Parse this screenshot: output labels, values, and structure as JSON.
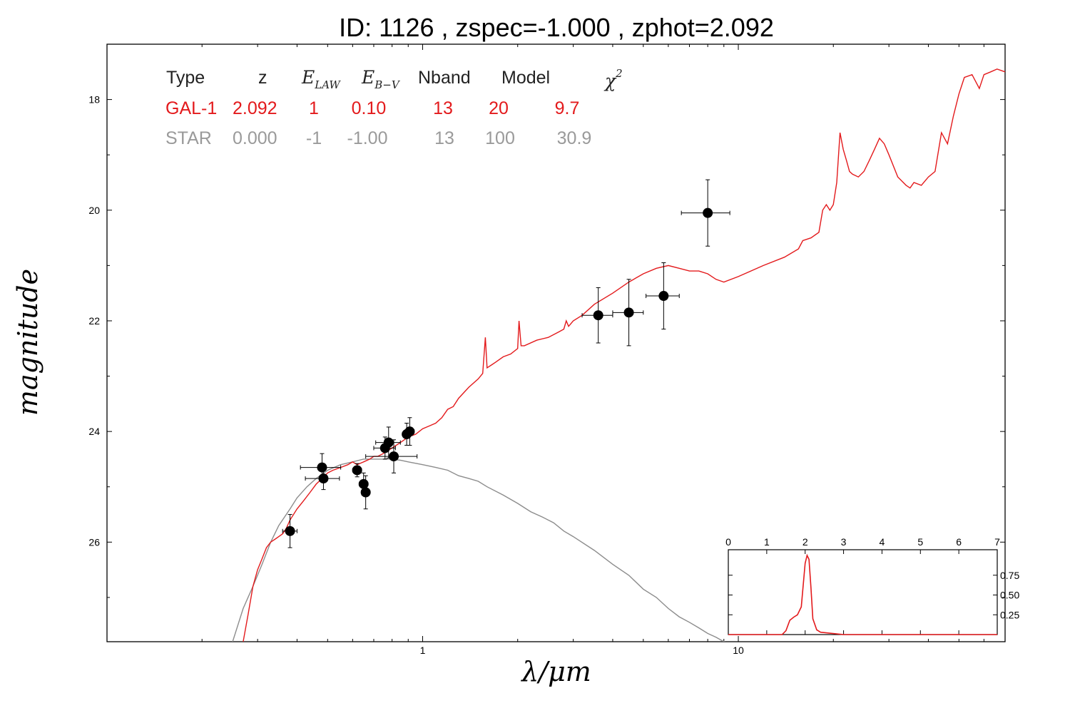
{
  "title": "ID:  1126  , zspec=-1.000 , zphot=2.092",
  "xlabel_main": "λ/",
  "xlabel_unit": "μm",
  "ylabel": "magnitude",
  "colors": {
    "galaxy": "#e31a1c",
    "star": "#8c8c8c",
    "points": "#000000",
    "axes": "#000000"
  },
  "table": {
    "headers": {
      "type": "Type",
      "z": "z",
      "elaw_main": "E",
      "elaw_sub": "LAW",
      "ebv_main": "E",
      "ebv_sub": "B−V",
      "nband": "Nband",
      "model": "Model",
      "chi2_main": "χ",
      "chi2_sup": "2"
    },
    "rows": [
      {
        "type": "GAL-1",
        "z": "2.092",
        "elaw": "1",
        "ebv": "0.10",
        "nband": "13",
        "model": "20",
        "chi2": "9.7"
      },
      {
        "type": "STAR",
        "z": "0.000",
        "elaw": "-1",
        "ebv": "-1.00",
        "nband": "13",
        "model": "100",
        "chi2": "30.9"
      }
    ]
  },
  "chart_data": [
    {
      "type": "scatter",
      "title": "ID:  1126  , zspec=-1.000 , zphot=2.092",
      "xlabel": "λ/μm",
      "ylabel": "magnitude",
      "xscale": "log",
      "xlim": [
        0.1,
        70
      ],
      "ylim": [
        27.8,
        17.0
      ],
      "yreversed": true,
      "x_ticks": [
        "1",
        "10"
      ],
      "y_ticks": [
        "18",
        "20",
        "22",
        "24",
        "26"
      ],
      "points": [
        {
          "x": 0.38,
          "y": 25.8,
          "xerr": 0.02,
          "yerr": 0.3
        },
        {
          "x": 0.48,
          "y": 24.65,
          "xerr": 0.07,
          "yerr": 0.25
        },
        {
          "x": 0.485,
          "y": 24.85,
          "xerr": 0.06,
          "yerr": 0.2
        },
        {
          "x": 0.62,
          "y": 24.7,
          "xerr": 0.02,
          "yerr": 0.12
        },
        {
          "x": 0.65,
          "y": 24.95,
          "xerr": 0.02,
          "yerr": 0.2
        },
        {
          "x": 0.66,
          "y": 25.1,
          "xerr": 0.02,
          "yerr": 0.3
        },
        {
          "x": 0.76,
          "y": 24.3,
          "xerr": 0.06,
          "yerr": 0.2
        },
        {
          "x": 0.78,
          "y": 24.2,
          "xerr": 0.07,
          "yerr": 0.28
        },
        {
          "x": 0.81,
          "y": 24.45,
          "xerr": 0.15,
          "yerr": 0.3
        },
        {
          "x": 0.89,
          "y": 24.05,
          "xerr": 0.02,
          "yerr": 0.2
        },
        {
          "x": 0.91,
          "y": 24.0,
          "xerr": 0.03,
          "yerr": 0.25
        },
        {
          "x": 3.6,
          "y": 21.9,
          "xerr": 0.4,
          "yerr": 0.5
        },
        {
          "x": 4.5,
          "y": 21.85,
          "xerr": 0.5,
          "yerr": 0.6
        },
        {
          "x": 5.8,
          "y": 21.55,
          "xerr": 0.7,
          "yerr": 0.6
        },
        {
          "x": 8.0,
          "y": 20.05,
          "xerr": 1.4,
          "yerr": 0.6
        }
      ],
      "series": [
        {
          "name": "GAL-1",
          "x": [
            0.27,
            0.28,
            0.29,
            0.3,
            0.31,
            0.32,
            0.33,
            0.34,
            0.35,
            0.36,
            0.37,
            0.38,
            0.4,
            0.42,
            0.44,
            0.46,
            0.48,
            0.5,
            0.52,
            0.55,
            0.58,
            0.6,
            0.62,
            0.65,
            0.68,
            0.7,
            0.72,
            0.75,
            0.8,
            0.85,
            0.9,
            0.95,
            1.0,
            1.05,
            1.1,
            1.15,
            1.2,
            1.25,
            1.3,
            1.4,
            1.5,
            1.55,
            1.58,
            1.6,
            1.65,
            1.7,
            1.8,
            1.9,
            2.0,
            2.02,
            2.05,
            2.1,
            2.3,
            2.5,
            2.7,
            2.8,
            2.85,
            2.9,
            3.0,
            3.2,
            3.5,
            4.0,
            4.5,
            5.0,
            5.5,
            6.0,
            6.5,
            7.0,
            7.5,
            8.0,
            8.5,
            9.0,
            10.0,
            12.0,
            14.0,
            15.5,
            16.0,
            17.0,
            18.0,
            18.5,
            19.0,
            19.5,
            20.0,
            20.5,
            21.0,
            21.5,
            22.0,
            22.5,
            23.0,
            24.0,
            25.0,
            26.0,
            27.0,
            28.0,
            29.0,
            30.0,
            32.0,
            34.0,
            35.0,
            36.0,
            38.0,
            40.0,
            42.0,
            44.0,
            46.0,
            48.0,
            50.0,
            52.0,
            55.0,
            58.0,
            60.0,
            63.0,
            66.0,
            70.0
          ],
          "y": [
            27.8,
            27.3,
            26.8,
            26.5,
            26.3,
            26.1,
            26.0,
            25.95,
            25.9,
            25.85,
            25.75,
            25.6,
            25.4,
            25.25,
            25.1,
            24.95,
            24.85,
            24.75,
            24.7,
            24.65,
            24.6,
            24.55,
            24.6,
            24.55,
            24.5,
            24.45,
            24.45,
            24.4,
            24.3,
            24.2,
            24.1,
            24.05,
            23.95,
            23.9,
            23.85,
            23.75,
            23.6,
            23.55,
            23.4,
            23.2,
            23.05,
            22.95,
            22.3,
            22.85,
            22.8,
            22.75,
            22.65,
            22.6,
            22.5,
            22.0,
            22.45,
            22.45,
            22.35,
            22.3,
            22.2,
            22.15,
            22.0,
            22.1,
            22.0,
            21.9,
            21.7,
            21.5,
            21.3,
            21.15,
            21.05,
            21.0,
            21.05,
            21.1,
            21.1,
            21.15,
            21.25,
            21.3,
            21.2,
            21.0,
            20.85,
            20.7,
            20.55,
            20.5,
            20.4,
            20.0,
            19.9,
            20.0,
            19.9,
            19.5,
            18.6,
            18.9,
            19.1,
            19.3,
            19.35,
            19.4,
            19.3,
            19.1,
            18.9,
            18.7,
            18.8,
            19.0,
            19.4,
            19.55,
            19.6,
            19.5,
            19.55,
            19.4,
            19.3,
            18.6,
            18.8,
            18.3,
            17.9,
            17.6,
            17.55,
            17.8,
            17.55,
            17.5,
            17.45,
            17.5
          ]
        },
        {
          "name": "STAR",
          "x": [
            0.25,
            0.27,
            0.29,
            0.31,
            0.33,
            0.35,
            0.38,
            0.4,
            0.43,
            0.46,
            0.5,
            0.55,
            0.6,
            0.65,
            0.7,
            0.75,
            0.8,
            0.85,
            0.9,
            1.0,
            1.1,
            1.2,
            1.3,
            1.4,
            1.5,
            1.6,
            1.8,
            2.0,
            2.2,
            2.4,
            2.6,
            2.8,
            3.0,
            3.5,
            4.0,
            4.5,
            5.0,
            5.5,
            6.0,
            6.5,
            7.0,
            7.5,
            8.0,
            8.5,
            9.0,
            9.5,
            10.0
          ],
          "y": [
            27.8,
            27.2,
            26.8,
            26.4,
            26.0,
            25.7,
            25.4,
            25.2,
            25.0,
            24.85,
            24.7,
            24.6,
            24.55,
            24.5,
            24.5,
            24.5,
            24.5,
            24.52,
            24.55,
            24.6,
            24.65,
            24.7,
            24.8,
            24.85,
            24.9,
            25.0,
            25.15,
            25.3,
            25.45,
            25.55,
            25.65,
            25.8,
            25.9,
            26.15,
            26.4,
            26.6,
            26.85,
            27.0,
            27.2,
            27.35,
            27.45,
            27.55,
            27.65,
            27.72,
            27.8,
            27.85,
            27.9
          ]
        }
      ]
    },
    {
      "type": "line",
      "xlim": [
        0,
        7
      ],
      "ylim": [
        0,
        1.0
      ],
      "x_ticks": [
        "0",
        "1",
        "2",
        "3",
        "4",
        "5",
        "6",
        "7"
      ],
      "y_ticks": [
        "0.25",
        "0.50",
        "0.75"
      ],
      "series": [
        {
          "x": [
            0,
            1.4,
            1.5,
            1.6,
            1.7,
            1.8,
            1.9,
            2.0,
            2.05,
            2.1,
            2.15,
            2.2,
            2.3,
            2.4,
            2.6,
            3.0,
            7.0
          ],
          "y": [
            0,
            0,
            0.05,
            0.18,
            0.22,
            0.25,
            0.35,
            0.9,
            1.0,
            0.95,
            0.6,
            0.2,
            0.06,
            0.03,
            0.02,
            0.0,
            0.0
          ]
        }
      ]
    }
  ]
}
